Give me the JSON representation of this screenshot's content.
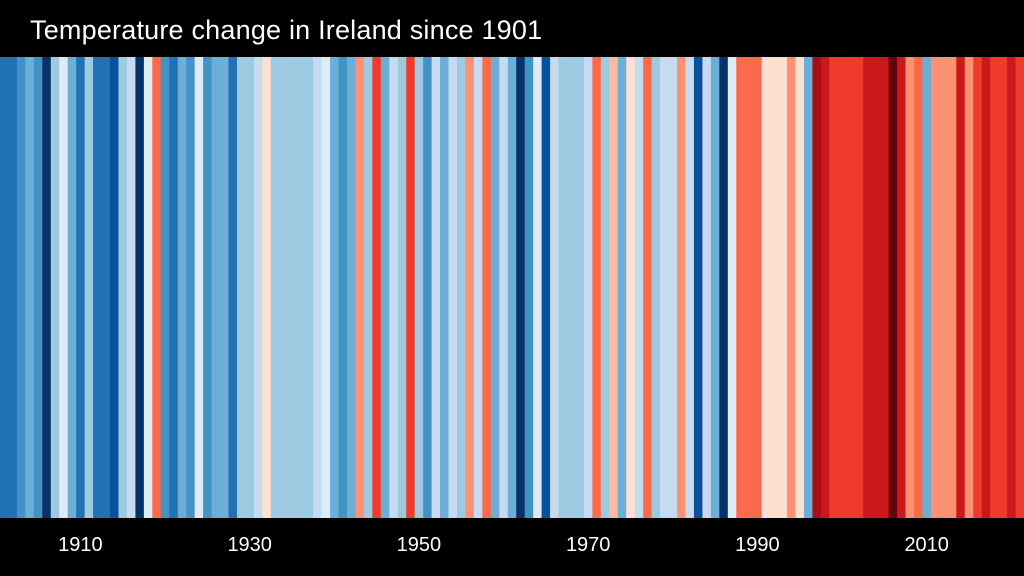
{
  "chart_data": {
    "type": "heatmap",
    "title": "Temperature change in Ireland since 1901",
    "x": [
      1901,
      1902,
      1903,
      1904,
      1905,
      1906,
      1907,
      1908,
      1909,
      1910,
      1911,
      1912,
      1913,
      1914,
      1915,
      1916,
      1917,
      1918,
      1919,
      1920,
      1921,
      1922,
      1923,
      1924,
      1925,
      1926,
      1927,
      1928,
      1929,
      1930,
      1931,
      1932,
      1933,
      1934,
      1935,
      1936,
      1937,
      1938,
      1939,
      1940,
      1941,
      1942,
      1943,
      1944,
      1945,
      1946,
      1947,
      1948,
      1949,
      1950,
      1951,
      1952,
      1953,
      1954,
      1955,
      1956,
      1957,
      1958,
      1959,
      1960,
      1961,
      1962,
      1963,
      1964,
      1965,
      1966,
      1967,
      1968,
      1969,
      1970,
      1971,
      1972,
      1973,
      1974,
      1975,
      1976,
      1977,
      1978,
      1979,
      1980,
      1981,
      1982,
      1983,
      1984,
      1985,
      1986,
      1987,
      1988,
      1989,
      1990,
      1991,
      1992,
      1993,
      1994,
      1995,
      1996,
      1997,
      1998,
      1999,
      2000,
      2001,
      2002,
      2003,
      2004,
      2005,
      2006,
      2007,
      2008,
      2009,
      2010,
      2011,
      2012,
      2013,
      2014,
      2015,
      2016,
      2017,
      2018,
      2019,
      2020,
      2021
    ],
    "stripe_colors": [
      "#2171b5",
      "#2171b5",
      "#4292c6",
      "#6baed6",
      "#4292c6",
      "#08306b",
      "#9ecae1",
      "#deebf7",
      "#6baed6",
      "#2171b5",
      "#9ecae1",
      "#2171b5",
      "#2171b5",
      "#08519c",
      "#9ecae1",
      "#c6dbef",
      "#08306b",
      "#deebf7",
      "#fb6a4a",
      "#4292c6",
      "#2171b5",
      "#6baed6",
      "#4292c6",
      "#deebf7",
      "#4292c6",
      "#6baed6",
      "#6baed6",
      "#2171b5",
      "#9ecae1",
      "#9ecae1",
      "#c6dbef",
      "#fee0d2",
      "#9ecae1",
      "#9ecae1",
      "#9ecae1",
      "#9ecae1",
      "#9ecae1",
      "#c6dbef",
      "#deebf7",
      "#6baed6",
      "#4292c6",
      "#6baed6",
      "#fc9272",
      "#9ecae1",
      "#ef3b2c",
      "#6baed6",
      "#c6dbef",
      "#9ecae1",
      "#ef3b2c",
      "#9ecae1",
      "#4292c6",
      "#c6dbef",
      "#6baed6",
      "#c6dbef",
      "#9ecae1",
      "#fc9272",
      "#c6dbef",
      "#fb6a4a",
      "#6baed6",
      "#c6dbef",
      "#6baed6",
      "#08306b",
      "#4292c6",
      "#deebf7",
      "#08519c",
      "#c6dbef",
      "#9ecae1",
      "#9ecae1",
      "#9ecae1",
      "#c6dbef",
      "#fb6a4a",
      "#9ecae1",
      "#fcbba1",
      "#6baed6",
      "#fee0d2",
      "#c6dbef",
      "#fb6a4a",
      "#9ecae1",
      "#c6dbef",
      "#c6dbef",
      "#fc9272",
      "#c6dbef",
      "#08519c",
      "#c6dbef",
      "#6baed6",
      "#08306b",
      "#deebf7",
      "#fb6a4a",
      "#fb6a4a",
      "#fb6a4a",
      "#fee0d2",
      "#fee0d2",
      "#fee0d2",
      "#fc9272",
      "#fee0d2",
      "#6baed6",
      "#a50f15",
      "#cb181d",
      "#ef3b2c",
      "#ef3b2c",
      "#ef3b2c",
      "#ef3b2c",
      "#cb181d",
      "#cb181d",
      "#cb181d",
      "#67000d",
      "#cb181d",
      "#fc9272",
      "#fb6a4a",
      "#6baed6",
      "#fc9272",
      "#fc9272",
      "#fc9272",
      "#cb181d",
      "#fc9272",
      "#ef3b2c",
      "#cb181d",
      "#ef3b2c",
      "#ef3b2c",
      "#cb181d",
      "#ef3b2c"
    ],
    "tick_labels": [
      "1910",
      "1930",
      "1950",
      "1970",
      "1990",
      "2010"
    ],
    "tick_years": [
      1910,
      1930,
      1950,
      1970,
      1990,
      2010
    ],
    "xlim": [
      1901,
      2021
    ]
  }
}
